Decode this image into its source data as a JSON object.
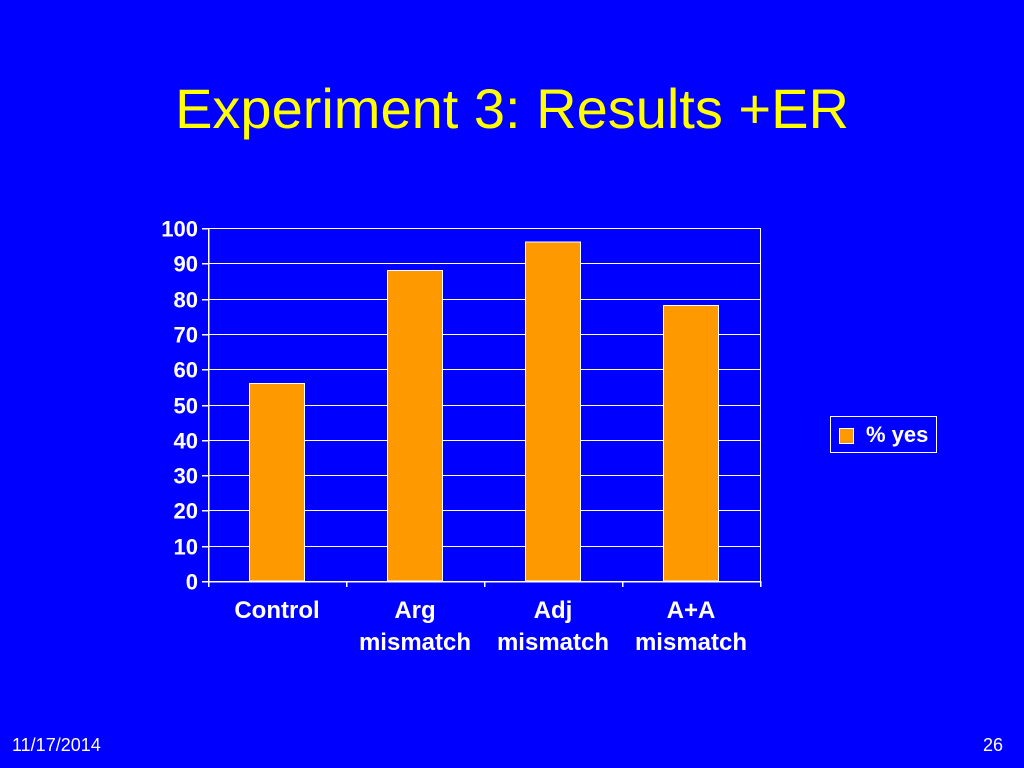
{
  "slide": {
    "title": "Experiment 3: Results +ER",
    "footer_date": "11/17/2014",
    "page_number": "26"
  },
  "colors": {
    "background": "#0000FF",
    "title": "#FFFF00",
    "text": "#FFFFFF",
    "bar": "#FF9900"
  },
  "chart_data": {
    "type": "bar",
    "categories": [
      "Control",
      "Arg mismatch",
      "Adj mismatch",
      "A+A mismatch"
    ],
    "series": [
      {
        "name": "% yes",
        "values": [
          56,
          88,
          96,
          78
        ],
        "color": "#FF9900"
      }
    ],
    "ylim": [
      0,
      100
    ],
    "yticks": [
      0,
      10,
      20,
      30,
      40,
      50,
      60,
      70,
      80,
      90,
      100
    ],
    "grid": true,
    "legend": {
      "position": "right"
    }
  }
}
